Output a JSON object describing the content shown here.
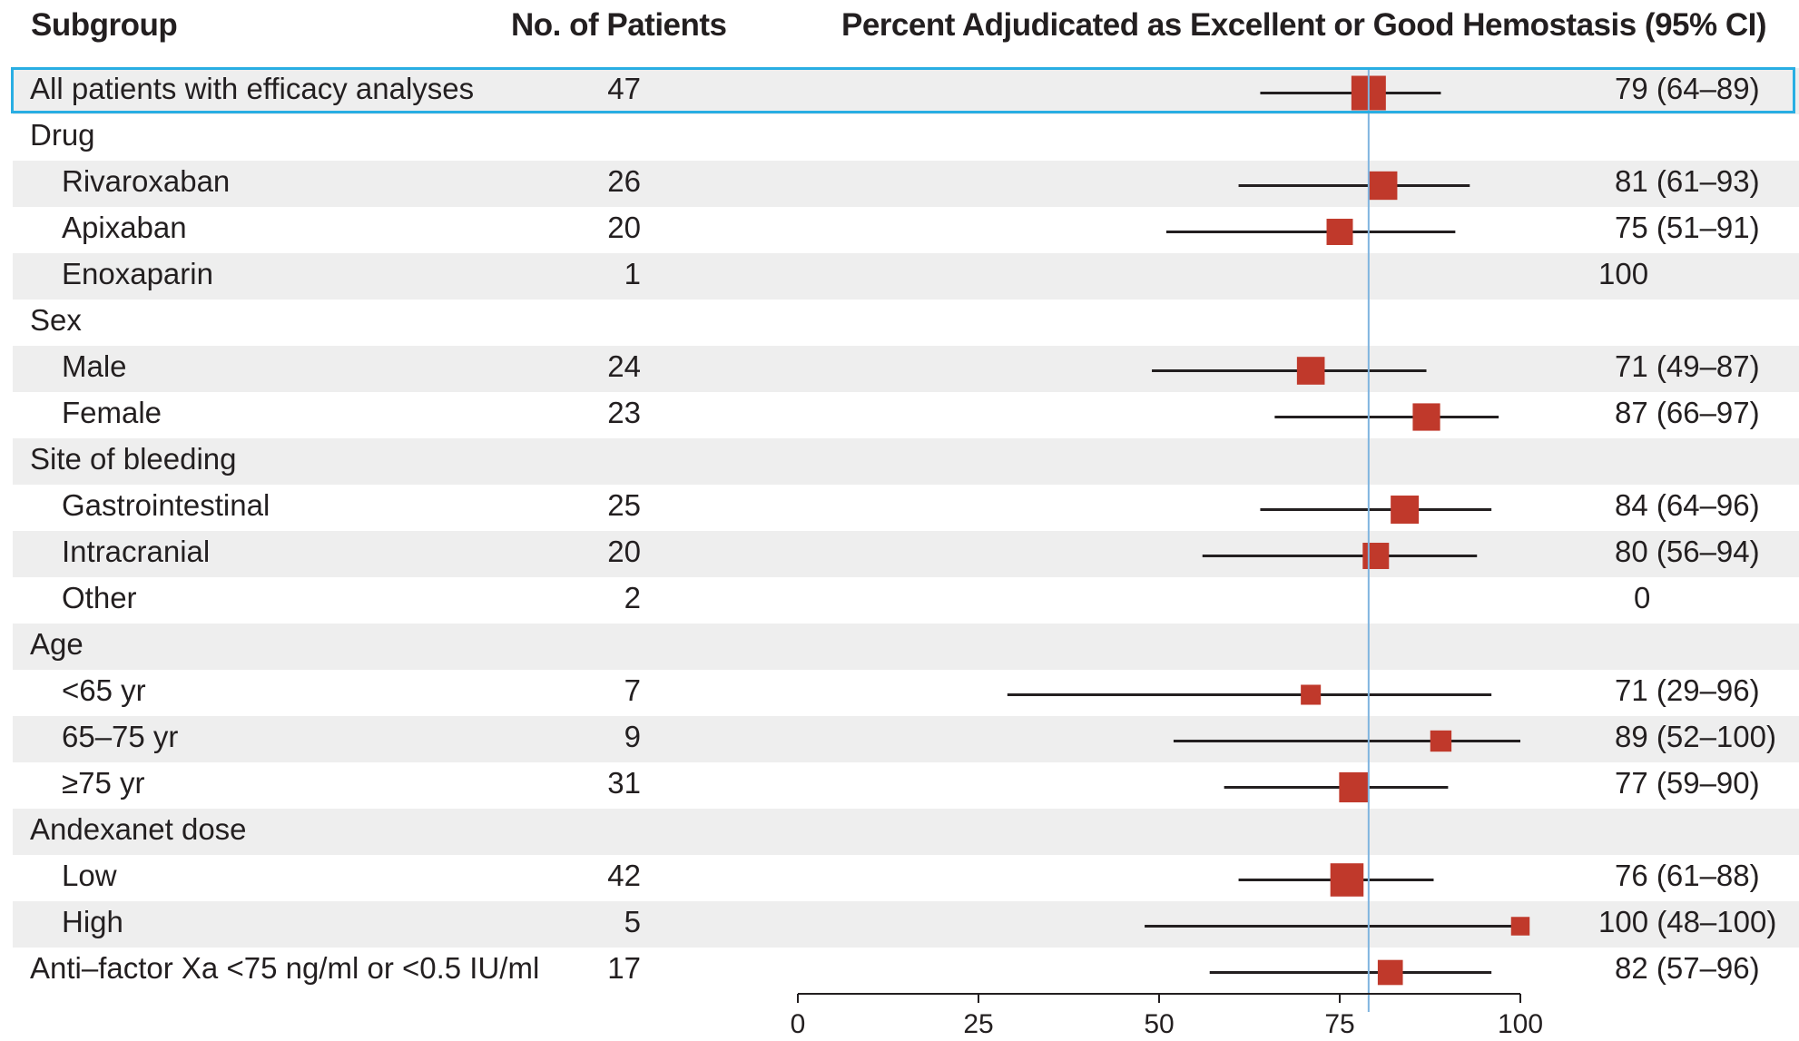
{
  "header": {
    "subgroup": "Subgroup",
    "patients": "No. of Patients",
    "percent": "Percent Adjudicated as Excellent or Good Hemostasis (95% CI)"
  },
  "chart_data": {
    "type": "forest",
    "xlim": [
      0,
      100
    ],
    "xticks": [
      0,
      25,
      50,
      75,
      100
    ],
    "reference_line": 79,
    "colors": {
      "marker": "#c0392b",
      "reference": "#7fb4df",
      "highlight": "#29aee3"
    },
    "rows": [
      {
        "label": "All patients with efficacy analyses",
        "n": "47",
        "estimate": 79,
        "lo": 64,
        "hi": 89,
        "text": "79 (64–89)",
        "level": 0,
        "highlight": true
      },
      {
        "label": "Drug",
        "n": "",
        "estimate": null,
        "text": "",
        "level": 0
      },
      {
        "label": "Rivaroxaban",
        "n": "26",
        "estimate": 81,
        "lo": 61,
        "hi": 93,
        "text": "81 (61–93)",
        "level": 1
      },
      {
        "label": "Apixaban",
        "n": "20",
        "estimate": 75,
        "lo": 51,
        "hi": 91,
        "text": "75 (51–91)",
        "level": 1
      },
      {
        "label": "Enoxaparin",
        "n": "1",
        "estimate": null,
        "text": "100",
        "level": 1
      },
      {
        "label": "Sex",
        "n": "",
        "estimate": null,
        "text": "",
        "level": 0
      },
      {
        "label": "Male",
        "n": "24",
        "estimate": 71,
        "lo": 49,
        "hi": 87,
        "text": "71 (49–87)",
        "level": 1
      },
      {
        "label": "Female",
        "n": "23",
        "estimate": 87,
        "lo": 66,
        "hi": 97,
        "text": "87 (66–97)",
        "level": 1
      },
      {
        "label": "Site of bleeding",
        "n": "",
        "estimate": null,
        "text": "",
        "level": 0
      },
      {
        "label": "Gastrointestinal",
        "n": "25",
        "estimate": 84,
        "lo": 64,
        "hi": 96,
        "text": "84 (64–96)",
        "level": 1
      },
      {
        "label": "Intracranial",
        "n": "20",
        "estimate": 80,
        "lo": 56,
        "hi": 94,
        "text": "80 (56–94)",
        "level": 1
      },
      {
        "label": "Other",
        "n": "2",
        "estimate": null,
        "text": "0",
        "level": 1
      },
      {
        "label": "Age",
        "n": "",
        "estimate": null,
        "text": "",
        "level": 0
      },
      {
        "label": "<65 yr",
        "n": "7",
        "estimate": 71,
        "lo": 29,
        "hi": 96,
        "text": "71 (29–96)",
        "level": 1
      },
      {
        "label": "65–75 yr",
        "n": "9",
        "estimate": 89,
        "lo": 52,
        "hi": 100,
        "text": "89 (52–100)",
        "level": 1
      },
      {
        "label": "≥75 yr",
        "n": "31",
        "estimate": 77,
        "lo": 59,
        "hi": 90,
        "text": "77 (59–90)",
        "level": 1
      },
      {
        "label": "Andexanet dose",
        "n": "",
        "estimate": null,
        "text": "",
        "level": 0
      },
      {
        "label": "Low",
        "n": "42",
        "estimate": 76,
        "lo": 61,
        "hi": 88,
        "text": "76 (61–88)",
        "level": 1
      },
      {
        "label": "High",
        "n": "5",
        "estimate": 100,
        "lo": 48,
        "hi": 100,
        "text": "100 (48–100)",
        "level": 1
      },
      {
        "label": "Anti–factor Xa <75 ng/ml or <0.5 IU/ml",
        "n": "17",
        "estimate": 82,
        "lo": 57,
        "hi": 96,
        "text": "82 (57–96)",
        "level": 0
      }
    ]
  }
}
